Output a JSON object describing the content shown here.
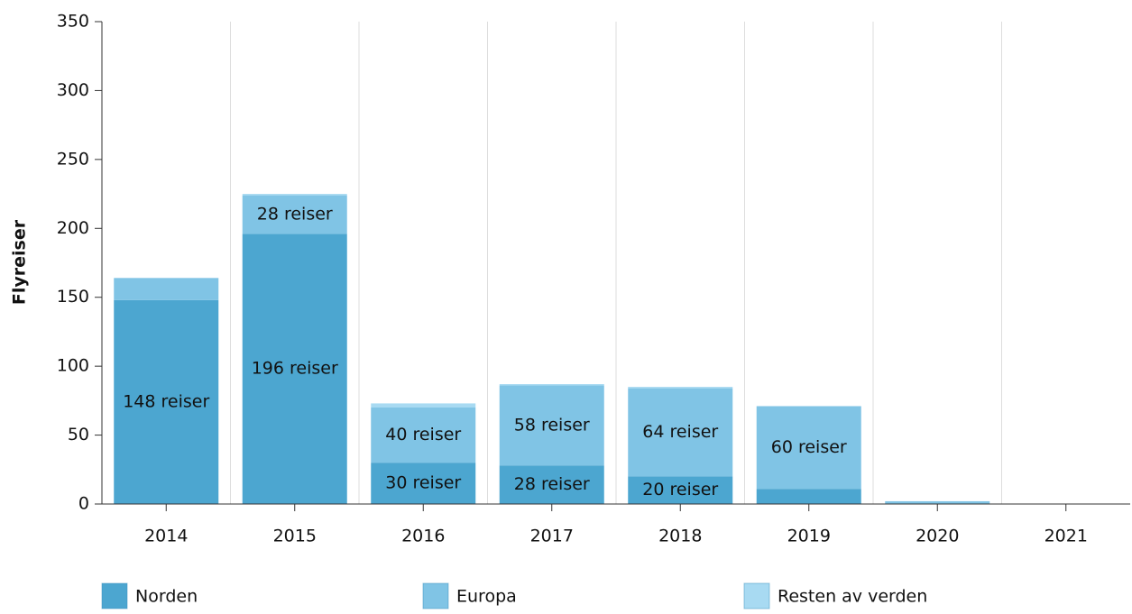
{
  "chart_data": {
    "type": "stacked_bar",
    "y_label": "Flyreiser",
    "categories": [
      "2014",
      "2015",
      "2016",
      "2017",
      "2018",
      "2019",
      "2020",
      "2021"
    ],
    "series": [
      {
        "name": "Norden",
        "color": "#4ca6d0",
        "values": [
          148,
          196,
          30,
          28,
          20,
          11,
          0,
          0
        ],
        "value_labels": [
          "148 reiser",
          "196 reiser",
          "30 reiser",
          "28 reiser",
          "20 reiser",
          null,
          null,
          null
        ]
      },
      {
        "name": "Europa",
        "color": "#80c4e5",
        "values": [
          16,
          28,
          40,
          58,
          64,
          60,
          2,
          0
        ],
        "value_labels": [
          null,
          "28 reiser",
          "40 reiser",
          "58 reiser",
          "64 reiser",
          "60 reiser",
          null,
          null
        ]
      },
      {
        "name": "Resten av verden",
        "color": "#a8daf2",
        "values": [
          0,
          1,
          3,
          1,
          1,
          0,
          0,
          0
        ]
      }
    ],
    "ylim": [
      0,
      350
    ],
    "yticks": [
      0,
      50,
      100,
      150,
      200,
      250,
      300,
      350
    ]
  }
}
